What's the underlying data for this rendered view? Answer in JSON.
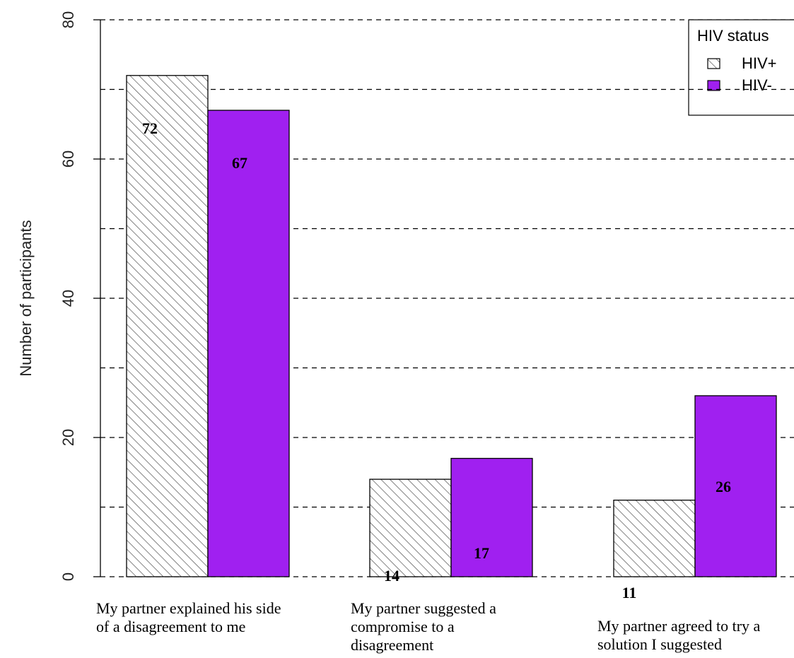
{
  "chart_data": {
    "type": "bar",
    "title": "",
    "xlabel": "",
    "ylabel": "Number of participants",
    "ylim": [
      0,
      80
    ],
    "yticks": [
      0,
      20,
      40,
      60,
      80
    ],
    "gridlines": [
      10,
      20,
      30,
      40,
      50,
      60,
      70,
      80
    ],
    "grid": true,
    "categories": [
      [
        "My partner explained his side",
        "of a disagreement to me"
      ],
      [
        "My partner suggested a",
        "compromise to a",
        "disagreement"
      ],
      [
        "My partner agreed to try a",
        "solution I suggested"
      ]
    ],
    "series": [
      {
        "name": "HIV+",
        "values": [
          72,
          14,
          11
        ],
        "fill": "hatched",
        "color": "#ffffff",
        "stroke": "#333333"
      },
      {
        "name": "HIV-",
        "values": [
          67,
          17,
          26
        ],
        "fill": "solid",
        "color": "#a020f0",
        "stroke": "#000000"
      }
    ],
    "legend": {
      "title": "HIV status",
      "placement": "top-right"
    }
  }
}
